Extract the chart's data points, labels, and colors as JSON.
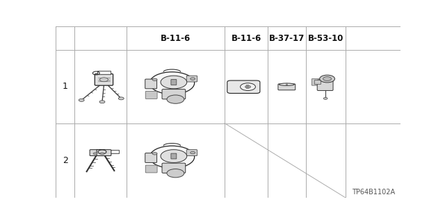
{
  "bg_color": "#ffffff",
  "grid_color": "#aaaaaa",
  "header_labels": [
    "B-11-6",
    "B-11-6",
    "B-37-17",
    "B-53-10"
  ],
  "row_labels": [
    "1",
    "2"
  ],
  "footnote": "TP64B1102A",
  "header_font_size": 8.5,
  "label_font_size": 9,
  "footnote_font_size": 7,
  "col_boundaries": [
    0.0,
    0.055,
    0.205,
    0.49,
    0.615,
    0.725,
    0.84,
    1.0
  ],
  "row_boundaries": [
    1.0,
    0.865,
    0.435,
    0.0
  ],
  "text_color": "#111111"
}
